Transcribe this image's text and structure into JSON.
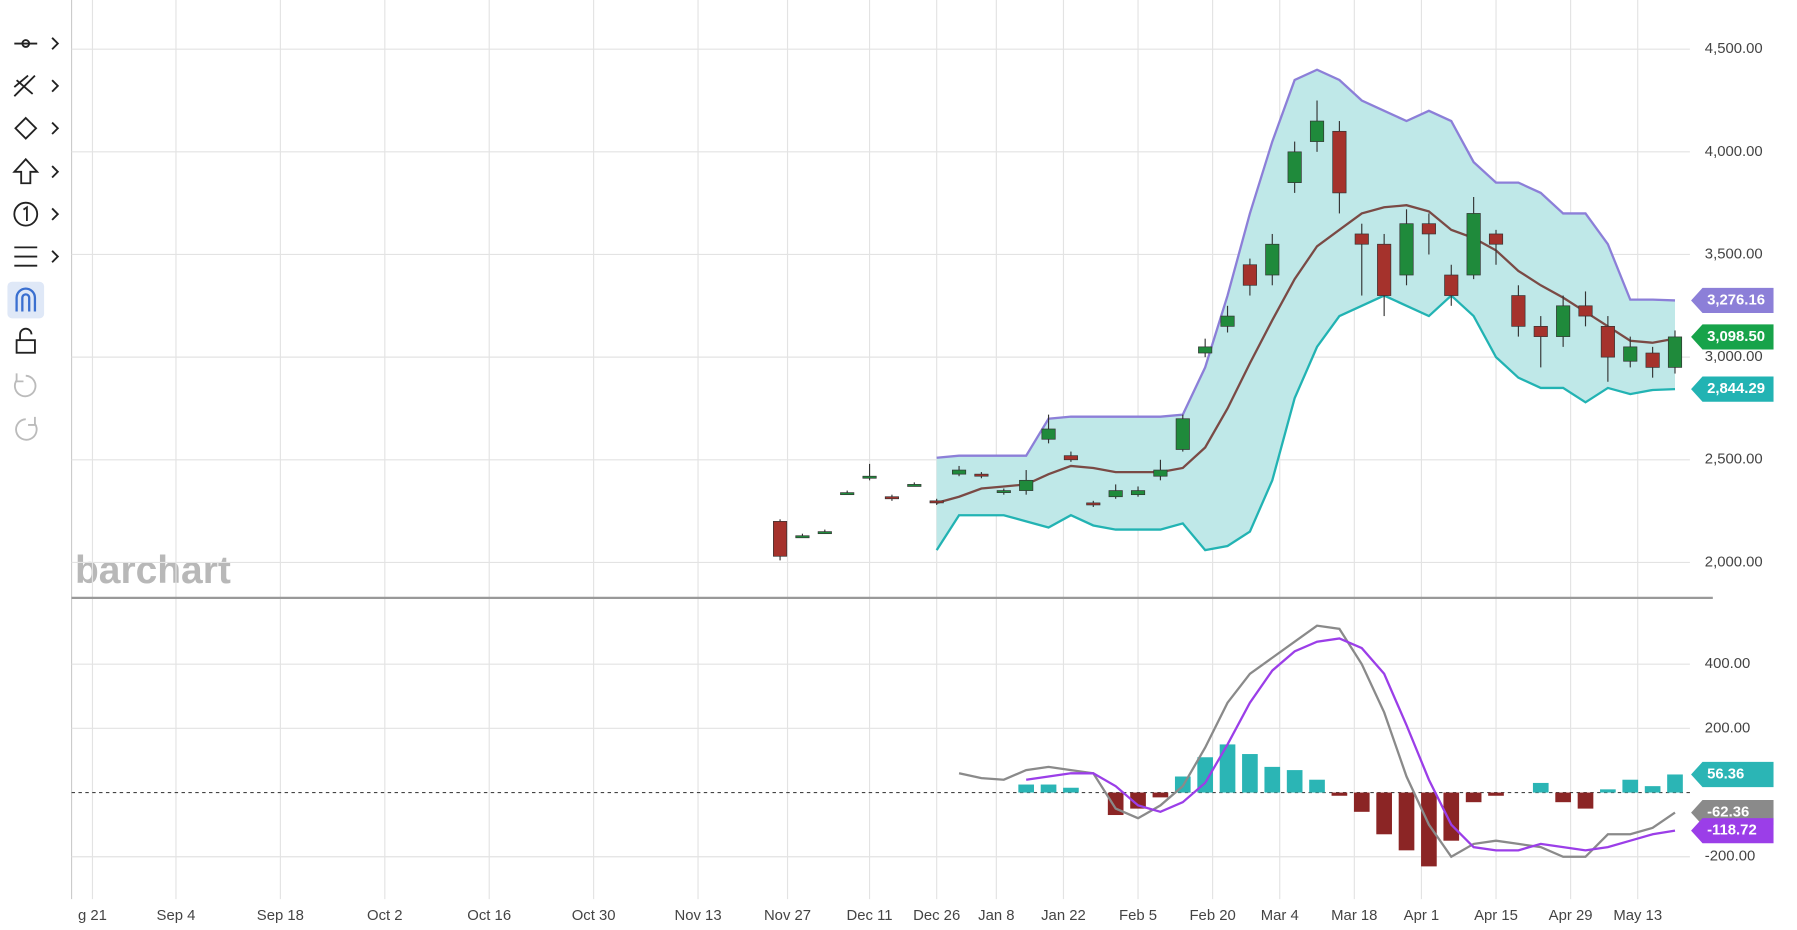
{
  "chart_data": [
    {
      "type": "candlestick",
      "watermark": "barchart",
      "x": [
        95,
        98,
        101,
        104,
        107,
        110,
        113,
        116,
        119,
        122,
        125,
        128,
        131,
        134,
        137,
        140,
        143,
        146,
        149,
        152,
        155,
        158,
        161,
        164,
        167,
        170,
        173,
        176,
        179,
        182,
        185,
        188,
        191,
        194,
        197,
        200,
        203,
        206,
        209,
        212,
        215
      ],
      "open": [
        2200,
        2120,
        2140,
        2330,
        2410,
        2320,
        2370,
        2300,
        2430,
        2430,
        2340,
        2350,
        2600,
        2520,
        2290,
        2320,
        2330,
        2420,
        2550,
        3020,
        3150,
        3450,
        3400,
        3850,
        4050,
        4100,
        3600,
        3550,
        3400,
        3650,
        3400,
        3400,
        3600,
        3300,
        3150,
        3100,
        3250,
        3150,
        2980,
        3020,
        2950
      ],
      "high": [
        2210,
        2140,
        2160,
        2350,
        2480,
        2330,
        2390,
        2310,
        2470,
        2440,
        2360,
        2450,
        2720,
        2540,
        2300,
        2380,
        2370,
        2500,
        2720,
        3090,
        3250,
        3480,
        3600,
        4050,
        4250,
        4150,
        3650,
        3600,
        3720,
        3700,
        3450,
        3780,
        3620,
        3350,
        3200,
        3300,
        3320,
        3200,
        3100,
        3050,
        3130
      ],
      "low": [
        2010,
        2120,
        2140,
        2330,
        2400,
        2300,
        2370,
        2280,
        2420,
        2410,
        2330,
        2330,
        2580,
        2490,
        2270,
        2310,
        2320,
        2400,
        2540,
        3000,
        3120,
        3300,
        3350,
        3800,
        4000,
        3700,
        3300,
        3200,
        3350,
        3500,
        3250,
        3380,
        3450,
        3100,
        2950,
        3050,
        3150,
        2880,
        2950,
        2900,
        2920
      ],
      "close": [
        2030,
        2130,
        2150,
        2340,
        2420,
        2310,
        2380,
        2290,
        2450,
        2420,
        2350,
        2400,
        2650,
        2500,
        2280,
        2350,
        2350,
        2450,
        2700,
        3050,
        3200,
        3350,
        3550,
        4000,
        4150,
        3800,
        3550,
        3300,
        3650,
        3600,
        3300,
        3700,
        3550,
        3150,
        3100,
        3250,
        3200,
        3000,
        3050,
        2950,
        3098.5
      ],
      "close_label": "3,098.50",
      "up_color": "#1f8a3b",
      "down_color": "#a5322c",
      "last_color": "#17a34a",
      "series": [
        {
          "color": "#8c7fd8",
          "value_label": "3,276.16",
          "values": [
            null,
            null,
            null,
            null,
            null,
            null,
            null,
            2510,
            2520,
            2520,
            2520,
            2520,
            2700,
            2710,
            2710,
            2710,
            2710,
            2710,
            2720,
            2950,
            3300,
            3700,
            4050,
            4350,
            4400,
            4350,
            4250,
            4200,
            4150,
            4200,
            4150,
            3950,
            3850,
            3850,
            3800,
            3700,
            3700,
            3550,
            3280,
            3280,
            3276.16
          ]
        },
        {
          "color": "#7a4a45",
          "values": [
            null,
            null,
            null,
            null,
            null,
            null,
            null,
            2290,
            2320,
            2360,
            2370,
            2380,
            2430,
            2470,
            2460,
            2440,
            2440,
            2440,
            2460,
            2560,
            2750,
            2970,
            3180,
            3380,
            3540,
            3620,
            3700,
            3730,
            3740,
            3710,
            3620,
            3580,
            3520,
            3420,
            3350,
            3290,
            3220,
            3150,
            3080,
            3070,
            3090
          ]
        },
        {
          "color": "#22b3b3",
          "value_label": "2,844.29",
          "values": [
            null,
            null,
            null,
            null,
            null,
            null,
            null,
            2060,
            2230,
            2230,
            2230,
            2200,
            2170,
            2230,
            2180,
            2160,
            2160,
            2160,
            2190,
            2060,
            2080,
            2150,
            2400,
            2800,
            3050,
            3200,
            3250,
            3300,
            3250,
            3200,
            3300,
            3200,
            3000,
            2900,
            2850,
            2850,
            2780,
            2850,
            2820,
            2840,
            2844.29
          ]
        }
      ],
      "band_color": "#bfe8e8",
      "ylim": [
        1833,
        4695
      ],
      "yticks": [
        {
          "value": 2000,
          "label": "2,000.00"
        },
        {
          "value": 2500,
          "label": "2,500.00"
        },
        {
          "value": 3000,
          "label": "3,000.00"
        },
        {
          "value": 3500,
          "label": "3,500.00"
        },
        {
          "value": 4000,
          "label": "4,000.00"
        },
        {
          "value": 4500,
          "label": "4,500.00"
        }
      ],
      "xlim": [
        0,
        217
      ],
      "xticks": [
        {
          "value": 2.8,
          "label": "g 21"
        },
        {
          "value": 14,
          "label": "Sep 4"
        },
        {
          "value": 28,
          "label": "Sep 18"
        },
        {
          "value": 42,
          "label": "Oct 2"
        },
        {
          "value": 56,
          "label": "Oct 16"
        },
        {
          "value": 70,
          "label": "Oct 30"
        },
        {
          "value": 84,
          "label": "Nov 13"
        },
        {
          "value": 96,
          "label": "Nov 27"
        },
        {
          "value": 107,
          "label": "Dec 11"
        },
        {
          "value": 116,
          "label": "Dec 26"
        },
        {
          "value": 124,
          "label": "Jan 8"
        },
        {
          "value": 133,
          "label": "Jan 22"
        },
        {
          "value": 143,
          "label": "Feb 5"
        },
        {
          "value": 153,
          "label": "Feb 20"
        },
        {
          "value": 162,
          "label": "Mar 4"
        },
        {
          "value": 172,
          "label": "Mar 18"
        },
        {
          "value": 181,
          "label": "Apr 1"
        },
        {
          "value": 191,
          "label": "Apr 15"
        },
        {
          "value": 201,
          "label": "Apr 29"
        },
        {
          "value": 210,
          "label": "May 13"
        }
      ],
      "grid": true
    },
    {
      "type": "macd",
      "x": [
        119,
        122,
        125,
        128,
        131,
        134,
        137,
        140,
        143,
        146,
        149,
        152,
        155,
        158,
        161,
        164,
        167,
        170,
        173,
        176,
        179,
        182,
        185,
        188,
        191,
        194,
        197,
        200,
        203,
        206,
        209,
        212,
        215
      ],
      "histogram": {
        "up_color": "#2bb5b5",
        "down_color": "#8b2525",
        "value_label": "56.36",
        "values": [
          null,
          null,
          null,
          25,
          25,
          15,
          0,
          -70,
          -50,
          -15,
          50,
          110,
          150,
          120,
          80,
          70,
          40,
          -10,
          -60,
          -130,
          -180,
          -230,
          -150,
          -30,
          -10,
          0,
          30,
          -30,
          -50,
          10,
          40,
          20,
          56.36
        ]
      },
      "series": [
        {
          "color": "#8a8a8a",
          "value_label": "-62.36",
          "values": [
            60,
            45,
            40,
            70,
            80,
            70,
            60,
            -50,
            -80,
            -40,
            20,
            140,
            280,
            370,
            420,
            470,
            520,
            510,
            400,
            250,
            50,
            -100,
            -200,
            -160,
            -150,
            -160,
            -170,
            -200,
            -200,
            -130,
            -130,
            -110,
            -62.36
          ]
        },
        {
          "color": "#9b3ee8",
          "value_label": "-118.72",
          "values": [
            null,
            null,
            null,
            40,
            50,
            60,
            60,
            20,
            -40,
            -60,
            -30,
            30,
            150,
            280,
            380,
            440,
            470,
            480,
            450,
            370,
            210,
            40,
            -100,
            -170,
            -180,
            -180,
            -160,
            -170,
            -180,
            -170,
            -150,
            -130,
            -118.72
          ]
        }
      ],
      "ylim": [
        -314,
        603
      ],
      "yticks": [
        {
          "value": -200,
          "label": "-200.00"
        },
        {
          "value": 200,
          "label": "200.00"
        },
        {
          "value": 400,
          "label": "400.00"
        }
      ],
      "grid": true
    }
  ]
}
